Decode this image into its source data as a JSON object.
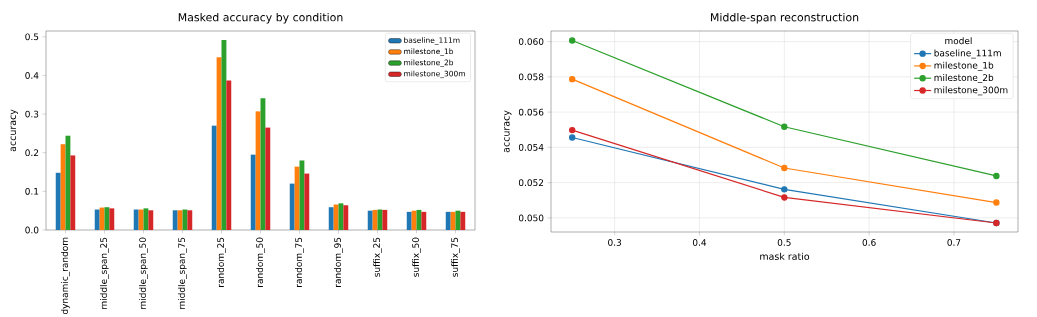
{
  "chart_data": [
    {
      "type": "bar",
      "title": "Masked accuracy by condition",
      "ylabel": "accuracy",
      "categories": [
        "dynamic_random",
        "middle_span_25",
        "middle_span_50",
        "middle_span_75",
        "random_25",
        "random_50",
        "random_75",
        "random_95",
        "suffix_25",
        "suffix_50",
        "suffix_75"
      ],
      "series": [
        {
          "name": "baseline_111m",
          "color": "#1f77b4",
          "values": [
            0.148,
            0.053,
            0.053,
            0.051,
            0.27,
            0.195,
            0.12,
            0.059,
            0.05,
            0.047,
            0.047
          ]
        },
        {
          "name": "milestone_1b",
          "color": "#ff7f0e",
          "values": [
            0.222,
            0.058,
            0.053,
            0.051,
            0.447,
            0.307,
            0.164,
            0.066,
            0.052,
            0.05,
            0.047
          ]
        },
        {
          "name": "milestone_2b",
          "color": "#2ca02c",
          "values": [
            0.244,
            0.059,
            0.056,
            0.053,
            0.492,
            0.341,
            0.18,
            0.069,
            0.053,
            0.052,
            0.05
          ]
        },
        {
          "name": "milestone_300m",
          "color": "#d62728",
          "values": [
            0.193,
            0.056,
            0.051,
            0.051,
            0.387,
            0.265,
            0.146,
            0.064,
            0.052,
            0.047,
            0.047
          ]
        }
      ],
      "ylim": [
        0,
        0.515
      ],
      "yticks": [
        {
          "value": 0,
          "label": "0.0"
        },
        0.1,
        0.2,
        0.3,
        0.4,
        0.5
      ],
      "legend": "top right"
    },
    {
      "type": "line",
      "title": "Middle-span reconstruction",
      "xlabel": "mask ratio",
      "ylabel": "accuracy",
      "legend_title": "model",
      "x": [
        0.25,
        0.5,
        0.75
      ],
      "series": [
        {
          "name": "baseline_111m",
          "color": "#1f77b4",
          "values": [
            0.05456,
            0.05162,
            0.04971
          ]
        },
        {
          "name": "milestone_1b",
          "color": "#ff7f0e",
          "values": [
            0.05787,
            0.05283,
            0.05087
          ]
        },
        {
          "name": "milestone_2b",
          "color": "#2ca02c",
          "values": [
            0.06006,
            0.05517,
            0.05238
          ]
        },
        {
          "name": "milestone_300m",
          "color": "#d62728",
          "values": [
            0.05498,
            0.05116,
            0.04971
          ]
        }
      ],
      "xlim": [
        0.225,
        0.7755
      ],
      "ylim": [
        0.0492,
        0.0606
      ],
      "xticks": [
        0.3,
        0.4,
        0.5,
        0.6,
        0.7
      ],
      "yticks": [
        {
          "value": 0.05,
          "label": "0.050"
        },
        {
          "value": 0.052,
          "label": "0.052"
        },
        {
          "value": 0.054,
          "label": "0.054"
        },
        {
          "value": 0.056,
          "label": "0.056"
        },
        {
          "value": 0.058,
          "label": "0.058"
        },
        {
          "value": 0.06,
          "label": "0.060"
        }
      ],
      "grid": true,
      "marker": "circle",
      "legend": "top right"
    }
  ]
}
